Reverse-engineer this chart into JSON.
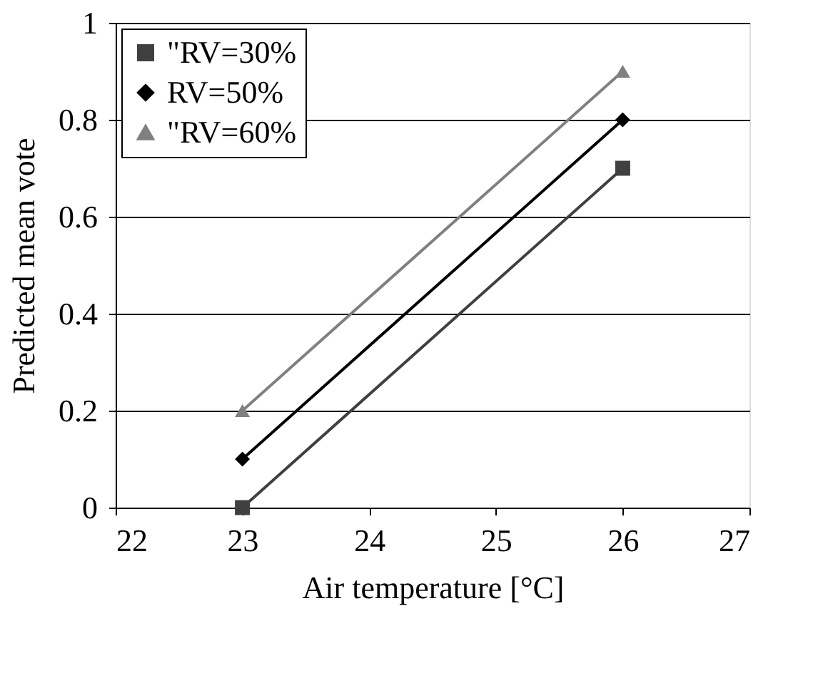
{
  "chart_data": {
    "type": "line",
    "xlabel": "Air temperature [°C]",
    "ylabel": "Predicted mean vote",
    "x": [
      23,
      26
    ],
    "xlim": [
      22,
      27
    ],
    "xticks": [
      22,
      23,
      24,
      25,
      26,
      27
    ],
    "ylim": [
      0,
      1
    ],
    "yticks": [
      0,
      0.2,
      0.4,
      0.6,
      0.8,
      1
    ],
    "grid": "y",
    "legend": "top left",
    "line_style": "solid",
    "series": [
      {
        "name": "\"RV=30%",
        "color": "#404040",
        "marker": "square",
        "values": [
          0,
          0.7
        ]
      },
      {
        "name": "RV=50%",
        "color": "#000000",
        "marker": "diamond",
        "values": [
          0.1,
          0.8
        ]
      },
      {
        "name": "\"RV=60%",
        "color": "#808080",
        "marker": "triangle",
        "values": [
          0.2,
          0.9
        ]
      }
    ]
  }
}
